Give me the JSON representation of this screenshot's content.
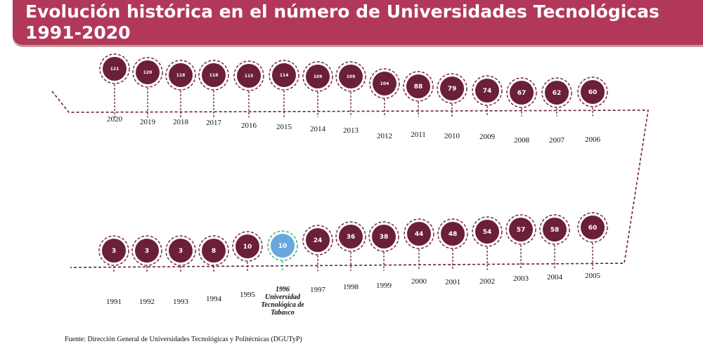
{
  "header": {
    "title_line1": "Evolución histórica en el número de Universidades Tecnológicas",
    "title_line2": "1991-2020"
  },
  "colors": {
    "header_bg": "#b2385a",
    "bubble_fill": "#6b1f38",
    "bubble_ring": "#6b1f38",
    "highlight_fill": "#6aa6de",
    "highlight_ring": "#3aa57a",
    "line": "#6b1f38"
  },
  "chart_data": {
    "type": "timeline",
    "top_row": [
      {
        "year": "2020",
        "value": "121"
      },
      {
        "year": "2019",
        "value": "120"
      },
      {
        "year": "2018",
        "value": "118"
      },
      {
        "year": "2017",
        "value": "118"
      },
      {
        "year": "2016",
        "value": "115"
      },
      {
        "year": "2015",
        "value": "114"
      },
      {
        "year": "2014",
        "value": "109"
      },
      {
        "year": "2013",
        "value": "109"
      },
      {
        "year": "2012",
        "value": "104"
      },
      {
        "year": "2011",
        "value": "88"
      },
      {
        "year": "2010",
        "value": "79"
      },
      {
        "year": "2009",
        "value": "74"
      },
      {
        "year": "2008",
        "value": "67"
      },
      {
        "year": "2007",
        "value": "62"
      },
      {
        "year": "2006",
        "value": "60"
      }
    ],
    "bottom_row": [
      {
        "year": "1991",
        "value": "3"
      },
      {
        "year": "1992",
        "value": "3"
      },
      {
        "year": "1993",
        "value": "3"
      },
      {
        "year": "1994",
        "value": "8"
      },
      {
        "year": "1995",
        "value": "10"
      },
      {
        "year": "1996",
        "value": "10",
        "highlight": true,
        "label_lines": [
          "1996",
          "Universidad",
          "Tecnológica de",
          "Tabasco"
        ]
      },
      {
        "year": "1997",
        "value": "24"
      },
      {
        "year": "1998",
        "value": "36"
      },
      {
        "year": "1999",
        "value": "38"
      },
      {
        "year": "2000",
        "value": "44"
      },
      {
        "year": "2001",
        "value": "48"
      },
      {
        "year": "2002",
        "value": "54"
      },
      {
        "year": "2003",
        "value": "57"
      },
      {
        "year": "2004",
        "value": "58"
      },
      {
        "year": "2005",
        "value": "60"
      }
    ]
  },
  "source": "Fuente: Dirección General de Universidades Tecnológicas y Politécnicas (DGUTyP)"
}
